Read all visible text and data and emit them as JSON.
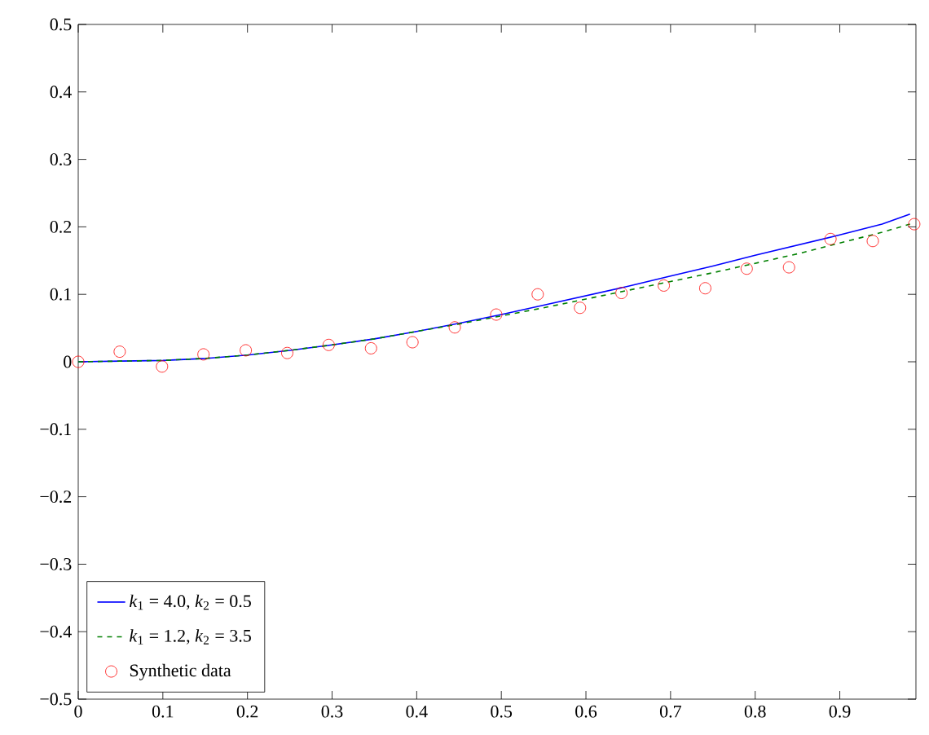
{
  "chart_data": {
    "type": "line",
    "xlim": [
      0,
      0.99
    ],
    "ylim": [
      -0.5,
      0.5
    ],
    "xticks": [
      0,
      0.1,
      0.2,
      0.3,
      0.4,
      0.5,
      0.6,
      0.7,
      0.8,
      0.9
    ],
    "yticks": [
      {
        "value": -0.5,
        "label": "−0.5"
      },
      {
        "value": -0.4,
        "label": "−0.4"
      },
      {
        "value": -0.3,
        "label": "−0.3"
      },
      {
        "value": -0.2,
        "label": "−0.2"
      },
      {
        "value": -0.1,
        "label": "−0.1"
      },
      0,
      0.1,
      0.2,
      0.3,
      0.4,
      0.5
    ],
    "legend": "bottom left",
    "grid": false,
    "series": [
      {
        "name": "*k*$_{1}$ = 4.0, *k*$_{2}$ = 0.5",
        "color": "#0000ff",
        "line_style": "solid",
        "marker": "none",
        "x": [
          0,
          0.05,
          0.1,
          0.15,
          0.2,
          0.25,
          0.3,
          0.35,
          0.4,
          0.45,
          0.5,
          0.55,
          0.6,
          0.65,
          0.7,
          0.75,
          0.8,
          0.85,
          0.9,
          0.95,
          0.983
        ],
        "values": [
          0,
          0.001,
          0.002,
          0.005,
          0.01,
          0.017,
          0.025,
          0.034,
          0.045,
          0.057,
          0.07,
          0.084,
          0.098,
          0.112,
          0.127,
          0.142,
          0.158,
          0.173,
          0.188,
          0.204,
          0.219
        ]
      },
      {
        "name": "*k*$_{1}$ = 1.2, *k*$_{2}$ = 3.5",
        "color": "#008000",
        "line_style": "dashed",
        "marker": "none",
        "x": [
          0,
          0.05,
          0.1,
          0.15,
          0.2,
          0.25,
          0.3,
          0.35,
          0.4,
          0.45,
          0.5,
          0.55,
          0.6,
          0.65,
          0.7,
          0.75,
          0.8,
          0.85,
          0.9,
          0.95,
          0.983
        ],
        "values": [
          0,
          0.001,
          0.002,
          0.005,
          0.01,
          0.017,
          0.025,
          0.034,
          0.045,
          0.056,
          0.068,
          0.08,
          0.093,
          0.106,
          0.119,
          0.132,
          0.146,
          0.16,
          0.176,
          0.192,
          0.204
        ]
      },
      {
        "name": "Synthetic data",
        "type": "scatter",
        "color": "#ff0000",
        "marker": "circle",
        "x": [
          0,
          0.049,
          0.099,
          0.148,
          0.198,
          0.247,
          0.296,
          0.346,
          0.395,
          0.445,
          0.494,
          0.543,
          0.593,
          0.642,
          0.692,
          0.741,
          0.79,
          0.84,
          0.889,
          0.939,
          0.988
        ],
        "values": [
          0,
          0.015,
          -0.007,
          0.011,
          0.017,
          0.013,
          0.025,
          0.02,
          0.029,
          0.051,
          0.07,
          0.1,
          0.08,
          0.102,
          0.113,
          0.109,
          0.138,
          0.14,
          0.182,
          0.179,
          0.204
        ]
      }
    ]
  }
}
